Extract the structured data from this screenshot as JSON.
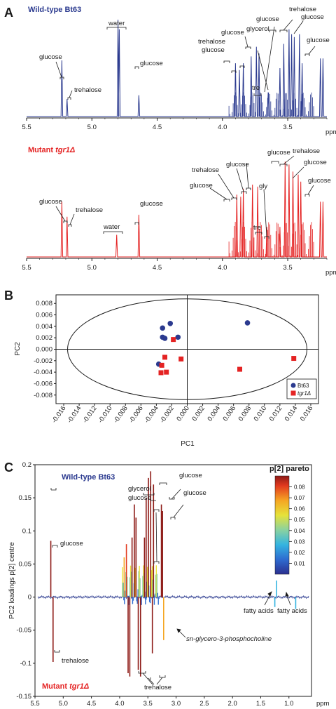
{
  "panel_a_top": {
    "letter": "A",
    "title": "Wild-type Bt63",
    "title_color": "#2b3a8f",
    "line_color": "#2b3a8f",
    "x_label": "ppm",
    "peak_labels": [
      "glucose",
      "trehalose",
      "water",
      "glucose",
      "trehalose",
      "glucose",
      "glucose",
      "glycerol",
      "tre",
      "glucose",
      "trehalose",
      "glucose",
      "glucose"
    ]
  },
  "panel_a_bottom": {
    "title_prefix": "Mutant ",
    "title_gene": "tgr1Δ",
    "title_color": "#e42323",
    "line_color": "#e42323",
    "x_label": "ppm",
    "peak_labels": [
      "glucose",
      "trehalose",
      "water",
      "glucose",
      "glucose",
      "trehalose",
      "glucose",
      "tre",
      "gly",
      "glucose",
      "trehalose",
      "glucose",
      "glucose"
    ]
  },
  "panel_b": {
    "letter": "B",
    "x_label": "PC1",
    "y_label": "PC2",
    "legend": [
      {
        "name": "Bt63",
        "color": "#2b3a8f"
      },
      {
        "name": "tgr1Δ",
        "color": "#e42323"
      }
    ]
  },
  "panel_c": {
    "letter": "C",
    "title_top": "Wild-type Bt63",
    "title_bottom_prefix": "Mutant ",
    "title_bottom_gene": "tgr1Δ",
    "colorbar_title": "p[2] pareto",
    "x_label": "ppm",
    "y_label": "PC2 loadings p[2] centre",
    "annotations": [
      "glucose",
      "glycerol",
      "glucose",
      "glucose",
      "glucose",
      "trehalose",
      "trehalose",
      "sn-glycero-3-phosphocholine",
      "fatty acids",
      "fatty acids"
    ]
  },
  "chart_data": [
    {
      "type": "line",
      "x_axis": {
        "range": [
          5.5,
          3.2
        ],
        "reversed": true,
        "ticks": [
          "5.5",
          "5.0",
          "4.5",
          "4.0",
          "3.5"
        ],
        "label": "ppm"
      },
      "series": [
        {
          "name": "Wild-type Bt63",
          "color": "#2b3a8f",
          "peaks": [
            {
              "ppm": 5.23,
              "height": 0.58
            },
            {
              "ppm": 5.19,
              "height": 0.18
            },
            {
              "ppm": 4.8,
              "height": 1.0
            },
            {
              "ppm": 4.79,
              "height": 0.9
            },
            {
              "ppm": 4.64,
              "height": 0.22
            },
            {
              "ppm": 3.9,
              "height": 0.55
            },
            {
              "ppm": 3.87,
              "height": 0.48
            },
            {
              "ppm": 3.84,
              "height": 0.55
            },
            {
              "ppm": 3.78,
              "height": 0.62
            },
            {
              "ppm": 3.74,
              "height": 0.72
            },
            {
              "ppm": 3.72,
              "height": 0.65
            },
            {
              "ppm": 3.65,
              "height": 0.25
            },
            {
              "ppm": 3.56,
              "height": 0.5
            },
            {
              "ppm": 3.53,
              "height": 0.75
            },
            {
              "ppm": 3.49,
              "height": 0.9
            },
            {
              "ppm": 3.47,
              "height": 0.85
            },
            {
              "ppm": 3.45,
              "height": 0.82
            },
            {
              "ppm": 3.41,
              "height": 0.85
            },
            {
              "ppm": 3.39,
              "height": 0.55
            },
            {
              "ppm": 3.25,
              "height": 0.6
            },
            {
              "ppm": 3.23,
              "height": 0.6
            }
          ]
        }
      ]
    },
    {
      "type": "line",
      "x_axis": {
        "range": [
          5.5,
          3.2
        ],
        "reversed": true,
        "ticks": [
          "5.5",
          "5.0",
          "4.5",
          "4.0",
          "3.5"
        ],
        "label": "ppm"
      },
      "series": [
        {
          "name": "Mutant tgr1Δ",
          "color": "#e42323",
          "peaks": [
            {
              "ppm": 5.23,
              "height": 0.55
            },
            {
              "ppm": 5.19,
              "height": 0.4
            },
            {
              "ppm": 4.81,
              "height": 0.22
            },
            {
              "ppm": 4.64,
              "height": 0.42
            },
            {
              "ppm": 3.89,
              "height": 0.62
            },
            {
              "ppm": 3.86,
              "height": 0.6
            },
            {
              "ppm": 3.84,
              "height": 0.68
            },
            {
              "ppm": 3.77,
              "height": 0.72
            },
            {
              "ppm": 3.73,
              "height": 0.7
            },
            {
              "ppm": 3.66,
              "height": 0.3
            },
            {
              "ppm": 3.56,
              "height": 0.3
            },
            {
              "ppm": 3.52,
              "height": 0.95
            },
            {
              "ppm": 3.49,
              "height": 0.92
            },
            {
              "ppm": 3.46,
              "height": 0.85
            },
            {
              "ppm": 3.42,
              "height": 0.82
            },
            {
              "ppm": 3.4,
              "height": 0.75
            },
            {
              "ppm": 3.25,
              "height": 0.55
            },
            {
              "ppm": 3.23,
              "height": 0.55
            }
          ]
        }
      ]
    },
    {
      "type": "scatter",
      "x_label": "PC1",
      "y_label": "PC2",
      "xlim": [
        -0.017,
        0.017
      ],
      "ylim": [
        -0.0095,
        0.0095
      ],
      "x_ticks": [
        -0.016,
        -0.014,
        -0.012,
        -0.01,
        -0.008,
        -0.006,
        -0.004,
        -0.002,
        0.0,
        0.002,
        0.004,
        0.006,
        0.008,
        0.01,
        0.012,
        0.014,
        0.016
      ],
      "y_ticks": [
        0.008,
        0.006,
        0.004,
        0.002,
        0.0,
        -0.002,
        -0.004,
        -0.006,
        -0.008
      ],
      "ellipse": {
        "rx": 0.0155,
        "ry": 0.0088
      },
      "legend_position": "bottom-right",
      "series": [
        {
          "name": "Bt63",
          "color": "#2b3a8f",
          "marker": "circle",
          "points": [
            [
              -0.0032,
              0.0037
            ],
            [
              -0.0022,
              0.0045
            ],
            [
              -0.0032,
              0.0021
            ],
            [
              -0.0029,
              0.0019
            ],
            [
              -0.0012,
              0.0021
            ],
            [
              -0.0037,
              -0.0026
            ],
            [
              0.0078,
              0.0046
            ]
          ]
        },
        {
          "name": "tgr1Δ",
          "color": "#e42323",
          "marker": "square",
          "points": [
            [
              -0.0018,
              0.0017
            ],
            [
              -0.0029,
              -0.0014
            ],
            [
              -0.0033,
              -0.0028
            ],
            [
              -0.0034,
              -0.0041
            ],
            [
              -0.0027,
              -0.004
            ],
            [
              -0.0008,
              -0.0017
            ],
            [
              0.0068,
              -0.0035
            ],
            [
              0.0138,
              -0.0016
            ]
          ]
        }
      ]
    },
    {
      "type": "line",
      "x_axis": {
        "range": [
          5.5,
          0.6
        ],
        "reversed": true,
        "ticks": [
          "5.5",
          "5.0",
          "4.5",
          "4.0",
          "3.5",
          "3.0",
          "2.5",
          "2.0",
          "1.5",
          "1.0"
        ],
        "label": "ppm"
      },
      "ylim": [
        -0.15,
        0.2
      ],
      "y_ticks": [
        -0.15,
        -0.1,
        -0.05,
        0,
        0.05,
        0.1,
        0.15,
        0.2
      ],
      "colorbar": {
        "title": "p[2] pareto",
        "ticks": [
          0.01,
          0.02,
          0.03,
          0.04,
          0.05,
          0.06,
          0.07,
          0.08
        ]
      },
      "peaks": [
        {
          "ppm": 5.22,
          "value": 0.085
        },
        {
          "ppm": 5.18,
          "value": -0.098
        },
        {
          "ppm": 3.92,
          "value": 0.06
        },
        {
          "ppm": 3.88,
          "value": 0.08
        },
        {
          "ppm": 3.85,
          "value": -0.115
        },
        {
          "ppm": 3.82,
          "value": -0.12
        },
        {
          "ppm": 3.78,
          "value": 0.09
        },
        {
          "ppm": 3.74,
          "value": 0.14
        },
        {
          "ppm": 3.71,
          "value": 0.12
        },
        {
          "ppm": 3.67,
          "value": -0.11
        },
        {
          "ppm": 3.63,
          "value": -0.12
        },
        {
          "ppm": 3.56,
          "value": 0.09
        },
        {
          "ppm": 3.53,
          "value": 0.15
        },
        {
          "ppm": 3.49,
          "value": 0.18
        },
        {
          "ppm": 3.45,
          "value": 0.19
        },
        {
          "ppm": 3.42,
          "value": -0.085
        },
        {
          "ppm": 3.4,
          "value": 0.17
        },
        {
          "ppm": 3.26,
          "value": 0.14
        },
        {
          "ppm": 3.24,
          "value": 0.13
        },
        {
          "ppm": 3.22,
          "value": -0.065
        },
        {
          "ppm": 1.25,
          "value": -0.015
        },
        {
          "ppm": 1.22,
          "value": 0.025
        },
        {
          "ppm": 0.88,
          "value": -0.018
        }
      ]
    }
  ]
}
